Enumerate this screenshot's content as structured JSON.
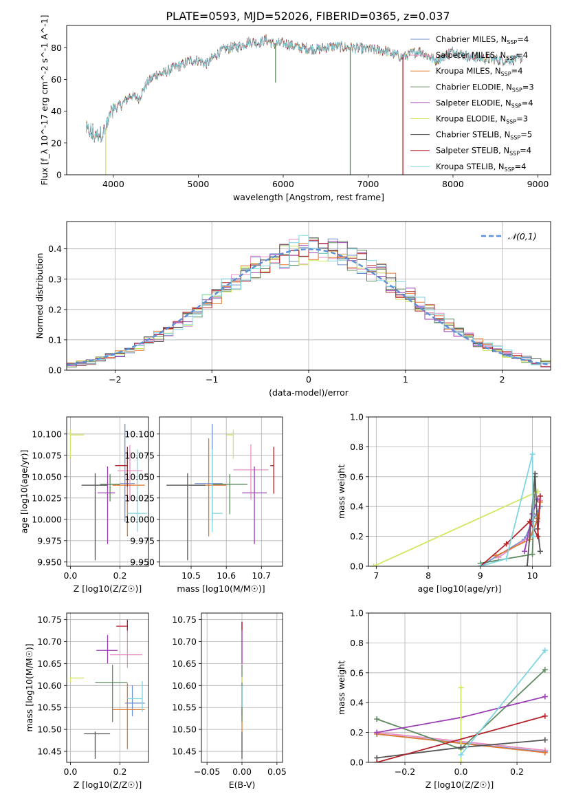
{
  "figure": {
    "title": "PLATE=0593, MJD=52026, FIBERID=0365, z=0.037"
  },
  "models": [
    {
      "name": "Chabrier MILES",
      "nssp": "4",
      "color": "#6f8fcf"
    },
    {
      "name": "Salpeter MILES",
      "nssp": "4",
      "color": "#e98fc5"
    },
    {
      "name": "Kroupa MILES",
      "nssp": "4",
      "color": "#e07b30"
    },
    {
      "name": "Chabrier ELODIE",
      "nssp": "3",
      "color": "#5f8a5f"
    },
    {
      "name": "Salpeter ELODIE",
      "nssp": "4",
      "color": "#9b3fb5"
    },
    {
      "name": "Kroupa ELODIE",
      "nssp": "3",
      "color": "#cfe85f"
    },
    {
      "name": "Chabrier STELIB",
      "nssp": "5",
      "color": "#555555"
    },
    {
      "name": "Salpeter STELIB",
      "nssp": "4",
      "color": "#b5232a"
    },
    {
      "name": "Kroupa STELIB",
      "nssp": "4",
      "color": "#7fd6e0"
    }
  ],
  "chart_data": [
    {
      "id": "spectrum",
      "type": "line",
      "xlabel": "wavelength [Angstrom, rest frame]",
      "ylabel": "Flux [f_λ 10^-17 erg cm^-2 s^-1 A^-1]",
      "xlim": [
        3450,
        9150
      ],
      "ylim": [
        0,
        94
      ],
      "xticks": [
        4000,
        5000,
        6000,
        7000,
        8000,
        9000
      ],
      "yticks": [
        0,
        20,
        40,
        60,
        80
      ],
      "grid": false,
      "legend": "right",
      "series_anchor_points": {
        "x": [
          3680,
          3800,
          3900,
          4000,
          4100,
          4200,
          4300,
          4400,
          4500,
          4600,
          4700,
          4800,
          4900,
          5000,
          5100,
          5200,
          5300,
          5400,
          5500,
          5600,
          5700,
          5800,
          5900,
          6000,
          6200,
          6400,
          6600,
          6800,
          7000,
          7200,
          7400,
          7600,
          7800,
          8000,
          8200,
          8400,
          8600,
          8800
        ],
        "y": [
          28,
          24,
          28,
          42,
          44,
          50,
          48,
          58,
          63,
          64,
          67,
          69,
          72,
          72,
          70,
          75,
          79,
          80,
          81,
          84,
          83,
          85,
          82,
          83,
          80,
          79,
          81,
          80,
          79,
          78,
          74,
          78,
          72,
          78,
          74,
          73,
          72,
          73
        ]
      }
    },
    {
      "id": "residuals",
      "type": "bar",
      "xlabel": "(data-model)/error",
      "ylabel": "Normed distribution",
      "xlim": [
        -2.5,
        2.5
      ],
      "ylim": [
        0,
        0.49
      ],
      "xticks": [
        -2,
        -1,
        0,
        1,
        2
      ],
      "yticks": [
        0.0,
        0.1,
        0.2,
        0.3,
        0.4
      ],
      "grid": true,
      "legend": "top-right",
      "reference_series": {
        "name": "𝒩(0,1)",
        "color": "#5b8fd8"
      },
      "bin_width": 0.1,
      "bin_start": -2.5
    },
    {
      "id": "age-vs-Z",
      "type": "scatter",
      "xlabel": "Z [log10(Z/Z☉)]",
      "ylabel": "age [log10(age/yr)]",
      "xlim": [
        -0.015,
        0.315
      ],
      "ylim": [
        9.945,
        10.12
      ],
      "xticks": [
        0.0,
        0.2
      ],
      "yticks": [
        9.95,
        9.975,
        10.0,
        10.025,
        10.05,
        10.075,
        10.1
      ],
      "grid": true,
      "points": [
        {
          "model": 0,
          "x": 0.22,
          "y": 10.042,
          "xerr": [
            0.02,
            0.04
          ],
          "yerr": [
            0.045,
            0.07
          ]
        },
        {
          "model": 1,
          "x": 0.24,
          "y": 10.057,
          "xerr": [
            0.05,
            0.05
          ],
          "yerr": [
            0.035,
            0.03
          ]
        },
        {
          "model": 2,
          "x": 0.23,
          "y": 10.04,
          "xerr": [
            0.06,
            0.07
          ],
          "yerr": [
            0.06,
            0.03
          ]
        },
        {
          "model": 3,
          "x": 0.16,
          "y": 10.041,
          "xerr": [
            0.04,
            0.04
          ],
          "yerr": [
            0.02,
            0.012
          ]
        },
        {
          "model": 4,
          "x": 0.15,
          "y": 10.031,
          "xerr": [
            0.04,
            0.03
          ],
          "yerr": [
            0.06,
            0.031
          ]
        },
        {
          "model": 5,
          "x": 0.0,
          "y": 10.099,
          "xerr": [
            0.0,
            0.055
          ],
          "yerr": [
            0.028,
            0.006
          ]
        },
        {
          "model": 6,
          "x": 0.1,
          "y": 10.04,
          "xerr": [
            0.055,
            0.05
          ],
          "yerr": [
            0.088,
            0.014
          ]
        },
        {
          "model": 7,
          "x": 0.23,
          "y": 10.063,
          "xerr": [
            0.05,
            0.0
          ],
          "yerr": [
            0.025,
            0.022
          ]
        },
        {
          "model": 8,
          "x": 0.27,
          "y": 10.007,
          "xerr": [
            0.04,
            0.04
          ],
          "yerr": [
            0.022,
            0.075
          ]
        }
      ]
    },
    {
      "id": "age-vs-mass",
      "type": "scatter",
      "xlabel": "mass [log10(M/M☉)]",
      "ylabel": "",
      "xlim": [
        10.41,
        10.76
      ],
      "ylim": [
        9.945,
        10.12
      ],
      "xticks": [
        10.5,
        10.6,
        10.7
      ],
      "yticks": [
        9.95,
        9.975,
        10.0,
        10.025,
        10.05,
        10.075,
        10.1
      ],
      "grid": true,
      "points": [
        {
          "model": 0,
          "x": 10.56,
          "y": 10.042,
          "xerr": [
            0.05,
            0.03
          ],
          "yerr": [
            0.045,
            0.07
          ]
        },
        {
          "model": 1,
          "x": 10.67,
          "y": 10.058,
          "xerr": [
            0.05,
            0.05
          ],
          "yerr": [
            0.035,
            0.03
          ]
        },
        {
          "model": 2,
          "x": 10.55,
          "y": 10.04,
          "xerr": [
            0.05,
            0.05
          ],
          "yerr": [
            0.06,
            0.055
          ]
        },
        {
          "model": 3,
          "x": 10.61,
          "y": 10.041,
          "xerr": [
            0.05,
            0.05
          ],
          "yerr": [
            0.035,
            0.012
          ]
        },
        {
          "model": 4,
          "x": 10.68,
          "y": 10.031,
          "xerr": [
            0.035,
            0.035
          ],
          "yerr": [
            0.06,
            0.031
          ]
        },
        {
          "model": 5,
          "x": 10.62,
          "y": 10.099,
          "xerr": [
            0.02,
            0.0
          ],
          "yerr": [
            0.028,
            0.006
          ]
        },
        {
          "model": 6,
          "x": 10.49,
          "y": 10.04,
          "xerr": [
            0.06,
            0.05
          ],
          "yerr": [
            0.088,
            0.014
          ]
        },
        {
          "model": 7,
          "x": 10.735,
          "y": 10.063,
          "xerr": [
            0.01,
            0.0
          ],
          "yerr": [
            0.033,
            0.022
          ]
        },
        {
          "model": 8,
          "x": 10.56,
          "y": 10.007,
          "xerr": [
            0.0,
            0.03
          ],
          "yerr": [
            0.022,
            0.075
          ]
        }
      ]
    },
    {
      "id": "weight-vs-age",
      "type": "line",
      "xlabel": "age [log10(age/yr)]",
      "ylabel": "mass weight",
      "xlim": [
        6.85,
        10.35
      ],
      "ylim": [
        0.0,
        1.0
      ],
      "xticks": [
        7,
        8,
        9,
        10
      ],
      "yticks": [
        0.0,
        0.2,
        0.4,
        0.6,
        0.8,
        1.0
      ],
      "grid": true,
      "series": [
        {
          "model": 0,
          "x": [
            9.0,
            9.85,
            10.0,
            10.15
          ],
          "y": [
            0.0,
            0.18,
            0.3,
            0.4
          ]
        },
        {
          "model": 1,
          "x": [
            9.35,
            9.95,
            10.1,
            10.15
          ],
          "y": [
            0.06,
            0.2,
            0.3,
            0.44
          ]
        },
        {
          "model": 2,
          "x": [
            9.3,
            9.95,
            10.1,
            10.15
          ],
          "y": [
            0.07,
            0.18,
            0.32,
            0.43
          ]
        },
        {
          "model": 3,
          "x": [
            9.0,
            10.0,
            10.05
          ],
          "y": [
            0.02,
            0.08,
            0.6
          ]
        },
        {
          "model": 4,
          "x": [
            9.85,
            10.0,
            10.1
          ],
          "y": [
            0.1,
            0.35,
            0.45
          ]
        },
        {
          "model": 5,
          "x": [
            6.95,
            10.1
          ],
          "y": [
            0.0,
            0.5
          ]
        },
        {
          "model": 6,
          "x": [
            9.9,
            10.05,
            10.1,
            10.15
          ],
          "y": [
            0.0,
            0.62,
            0.25,
            0.1
          ]
        },
        {
          "model": 7,
          "x": [
            9.0,
            9.5,
            9.95,
            10.1,
            10.15
          ],
          "y": [
            0.0,
            0.15,
            0.3,
            0.2,
            0.47
          ]
        },
        {
          "model": 8,
          "x": [
            9.0,
            9.5,
            10.0,
            10.02
          ],
          "y": [
            0.0,
            0.05,
            0.75,
            0.2
          ]
        }
      ]
    },
    {
      "id": "mass-vs-Z",
      "type": "scatter",
      "xlabel": "Z [log10(Z/Z☉)]",
      "ylabel": "mass [log10(M/M☉)]",
      "xlim": [
        -0.015,
        0.315
      ],
      "ylim": [
        10.425,
        10.765
      ],
      "xticks": [
        0.0,
        0.2
      ],
      "yticks": [
        10.45,
        10.5,
        10.55,
        10.6,
        10.65,
        10.7,
        10.75
      ],
      "grid": true,
      "points": [
        {
          "model": 0,
          "x": 0.25,
          "y": 10.56,
          "xerr": [
            0.03,
            0.05
          ],
          "yerr": [
            0.03,
            0.04
          ]
        },
        {
          "model": 1,
          "x": 0.23,
          "y": 10.67,
          "xerr": [
            0.07,
            0.06
          ],
          "yerr": [
            0.03,
            0.08
          ]
        },
        {
          "model": 2,
          "x": 0.23,
          "y": 10.545,
          "xerr": [
            0.06,
            0.07
          ],
          "yerr": [
            0.09,
            0.06
          ]
        },
        {
          "model": 3,
          "x": 0.17,
          "y": 10.607,
          "xerr": [
            0.07,
            0.06
          ],
          "yerr": [
            0.09,
            0.04
          ]
        },
        {
          "model": 4,
          "x": 0.15,
          "y": 10.68,
          "xerr": [
            0.045,
            0.04
          ],
          "yerr": [
            0.03,
            0.035
          ]
        },
        {
          "model": 5,
          "x": 0.0,
          "y": 10.617,
          "xerr": [
            0.0,
            0.055
          ],
          "yerr": [
            0.01,
            0.003
          ]
        },
        {
          "model": 6,
          "x": 0.1,
          "y": 10.49,
          "xerr": [
            0.045,
            0.06
          ],
          "yerr": [
            0.057,
            0.005
          ]
        },
        {
          "model": 7,
          "x": 0.23,
          "y": 10.735,
          "xerr": [
            0.045,
            0.0
          ],
          "yerr": [
            0.01,
            0.015
          ]
        },
        {
          "model": 8,
          "x": 0.29,
          "y": 10.57,
          "xerr": [
            0.06,
            0.0
          ],
          "yerr": [
            0.03,
            0.04
          ]
        }
      ]
    },
    {
      "id": "mass-vs-ebv",
      "type": "scatter",
      "xlabel": "E(B-V)",
      "ylabel": "",
      "xlim": [
        -0.058,
        0.058
      ],
      "ylim": [
        10.425,
        10.765
      ],
      "xticks": [
        -0.05,
        0.0,
        0.05
      ],
      "yticks": [
        10.45,
        10.5,
        10.55,
        10.6,
        10.65,
        10.7,
        10.75
      ],
      "grid": true,
      "points": [
        {
          "model": 0,
          "x": 0.0,
          "y": 10.56,
          "xerr": [
            0.0,
            0.0
          ],
          "yerr": [
            0.03,
            0.04
          ]
        },
        {
          "model": 1,
          "x": 0.0,
          "y": 10.67,
          "xerr": [
            0.0,
            0.0
          ],
          "yerr": [
            0.03,
            0.075
          ]
        },
        {
          "model": 2,
          "x": 0.0,
          "y": 10.545,
          "xerr": [
            0.0,
            0.0
          ],
          "yerr": [
            0.05,
            0.06
          ]
        },
        {
          "model": 3,
          "x": 0.0,
          "y": 10.607,
          "xerr": [
            0.0,
            0.0
          ],
          "yerr": [
            0.09,
            0.04
          ]
        },
        {
          "model": 4,
          "x": 0.0,
          "y": 10.68,
          "xerr": [
            0.0,
            0.0
          ],
          "yerr": [
            0.03,
            0.065
          ]
        },
        {
          "model": 5,
          "x": 0.0,
          "y": 10.617,
          "xerr": [
            0.0,
            0.0
          ],
          "yerr": [
            0.01,
            0.003
          ]
        },
        {
          "model": 6,
          "x": 0.0,
          "y": 10.49,
          "xerr": [
            0.0,
            0.0
          ],
          "yerr": [
            0.057,
            0.005
          ]
        },
        {
          "model": 7,
          "x": 0.0,
          "y": 10.735,
          "xerr": [
            0.0,
            0.0
          ],
          "yerr": [
            0.01,
            0.01
          ]
        },
        {
          "model": 8,
          "x": 0.0,
          "y": 10.57,
          "xerr": [
            0.0,
            0.0
          ],
          "yerr": [
            0.02,
            0.03
          ]
        }
      ]
    },
    {
      "id": "weight-vs-Z",
      "type": "line",
      "xlabel": "Z [log10(Z/Z☉)]",
      "ylabel": "mass weight",
      "xlim": [
        -0.33,
        0.32
      ],
      "ylim": [
        0.0,
        1.0
      ],
      "xticks": [
        -0.2,
        0.0,
        0.2
      ],
      "yticks": [
        0.0,
        0.2,
        0.4,
        0.6,
        0.8,
        1.0
      ],
      "grid": true,
      "series": [
        {
          "model": 0,
          "x": [
            -0.3,
            0.3
          ],
          "y": [
            0.19,
            0.07
          ]
        },
        {
          "model": 1,
          "x": [
            -0.3,
            0.3
          ],
          "y": [
            0.2,
            0.08
          ]
        },
        {
          "model": 2,
          "x": [
            -0.3,
            0.3
          ],
          "y": [
            0.19,
            0.065
          ]
        },
        {
          "model": 3,
          "x": [
            -0.3,
            0.0,
            0.3
          ],
          "y": [
            0.29,
            0.09,
            0.62
          ]
        },
        {
          "model": 4,
          "x": [
            -0.3,
            0.0,
            0.3
          ],
          "y": [
            0.2,
            0.3,
            0.44
          ]
        },
        {
          "model": 5,
          "x": [
            0.0,
            0.0
          ],
          "y": [
            0.0,
            0.5
          ]
        },
        {
          "model": 6,
          "x": [
            -0.3,
            0.0,
            0.3
          ],
          "y": [
            0.03,
            0.1,
            0.15
          ]
        },
        {
          "model": 7,
          "x": [
            -0.3,
            0.3
          ],
          "y": [
            0.0,
            0.31
          ]
        },
        {
          "model": 8,
          "x": [
            0.0,
            0.3
          ],
          "y": [
            0.05,
            0.75
          ]
        }
      ]
    }
  ]
}
